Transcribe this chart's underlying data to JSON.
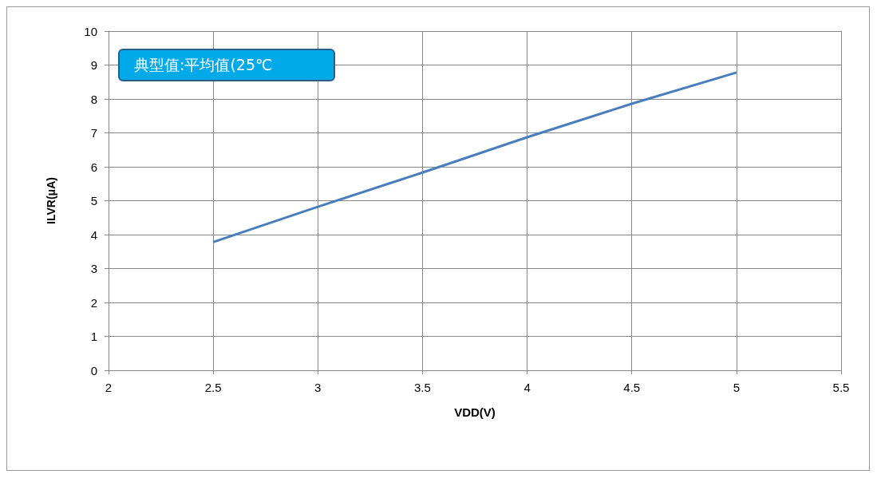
{
  "chart_data": {
    "type": "line",
    "xlabel": "VDD(V)",
    "ylabel": "ILVR(μA)",
    "annotations": [
      "典型值:平均值(25℃"
    ],
    "x": [
      2.5,
      3,
      3.5,
      4,
      4.5,
      5
    ],
    "series": [
      {
        "color": "#4a7ebb",
        "values": [
          3.78,
          4.82,
          5.83,
          6.87,
          7.86,
          8.78
        ]
      }
    ],
    "xlim": [
      2,
      5.5
    ],
    "xticks": [
      2,
      2.5,
      3,
      3.5,
      4,
      4.5,
      5,
      5.5
    ],
    "ylim": [
      0,
      10
    ],
    "yticks": [
      0,
      1,
      2,
      3,
      4,
      5,
      6,
      7,
      8,
      9,
      10
    ],
    "grid": true,
    "marker": "none",
    "line_style": "solid"
  }
}
